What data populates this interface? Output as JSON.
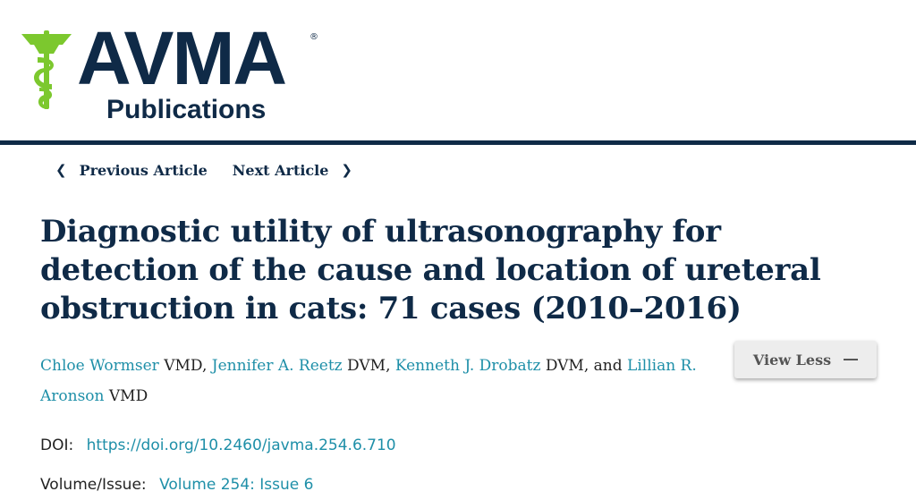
{
  "logo": {
    "brand": "AVMA",
    "subtitle": "Publications",
    "registered_mark": "®",
    "colors": {
      "navy": "#0f2a47",
      "green": "#7cc82e"
    }
  },
  "nav": {
    "previous_label": "Previous Article",
    "next_label": "Next Article"
  },
  "article": {
    "title_line1": "Diagnostic utility of ultrasonography for",
    "title_line2": "detection of the cause and location of ureteral",
    "title_line3": "obstruction in cats: 71 cases (2010–2016)",
    "authors": [
      {
        "name": "Chloe Wormser",
        "degree": "VMD"
      },
      {
        "name": "Jennifer A. Reetz",
        "degree": "DVM"
      },
      {
        "name": "Kenneth J. Drobatz",
        "degree": "DVM"
      },
      {
        "name": "Lillian R. Aronson",
        "degree": "VMD"
      }
    ],
    "and_word": "and",
    "view_less_label": "View Less",
    "doi_label": "DOI:",
    "doi_value": "https://doi.org/10.2460/javma.254.6.710",
    "volume_label": "Volume/Issue:",
    "volume_value": "Volume 254: Issue 6"
  }
}
